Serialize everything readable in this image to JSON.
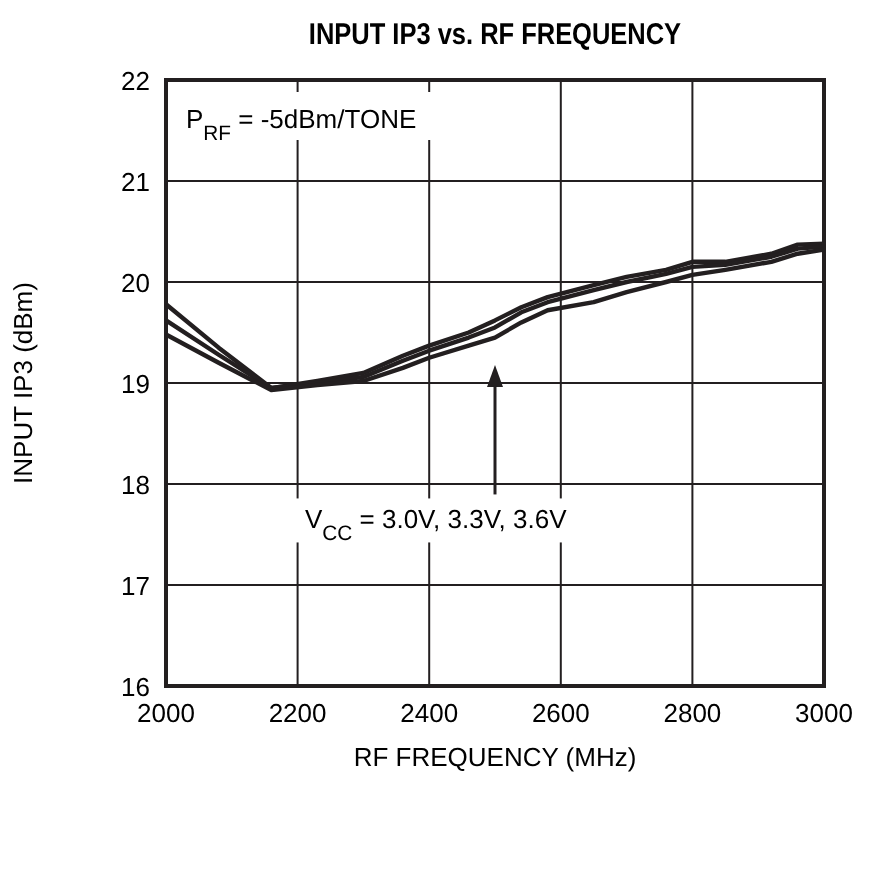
{
  "chart_data": {
    "type": "line",
    "title": "INPUT IP3 vs. RF FREQUENCY",
    "xlabel": "RF FREQUENCY (MHz)",
    "ylabel": "INPUT IP3 (dBm)",
    "xlim": [
      2000,
      3000
    ],
    "xticks": [
      2000,
      2200,
      2400,
      2600,
      2800,
      3000
    ],
    "ylim": [
      16,
      22
    ],
    "yticks": [
      16,
      17,
      18,
      19,
      20,
      21,
      22
    ],
    "grid": true,
    "marker": "none",
    "line_style": "solid",
    "annotations": [
      "P$_{RF}$ = -5dBm/TONE",
      "V$_{CC}$ = 3.0V, 3.3V, 3.6V"
    ],
    "series": [
      {
        "color": "#231f20",
        "x": [
          2000,
          2080,
          2160,
          2230,
          2300,
          2360,
          2400,
          2460,
          2500,
          2540,
          2580,
          2650,
          2700,
          2760,
          2800,
          2850,
          2920,
          2960,
          3000
        ],
        "values": [
          19.78,
          19.35,
          18.95,
          19.02,
          19.1,
          19.27,
          19.37,
          19.5,
          19.62,
          19.75,
          19.85,
          19.97,
          20.05,
          20.12,
          20.2,
          20.2,
          20.28,
          20.37,
          20.38
        ]
      },
      {
        "color": "#231f20",
        "x": [
          2000,
          2080,
          2160,
          2230,
          2300,
          2360,
          2400,
          2460,
          2500,
          2540,
          2580,
          2650,
          2700,
          2760,
          2800,
          2850,
          2920,
          2960,
          3000
        ],
        "values": [
          19.62,
          19.28,
          18.95,
          19.0,
          19.06,
          19.22,
          19.32,
          19.45,
          19.55,
          19.7,
          19.8,
          19.92,
          20.0,
          20.08,
          20.15,
          20.17,
          20.25,
          20.33,
          20.35
        ]
      },
      {
        "color": "#231f20",
        "x": [
          2000,
          2080,
          2160,
          2230,
          2300,
          2360,
          2400,
          2460,
          2500,
          2540,
          2580,
          2650,
          2700,
          2760,
          2800,
          2850,
          2920,
          2960,
          3000
        ],
        "values": [
          19.48,
          19.2,
          18.93,
          18.98,
          19.02,
          19.15,
          19.25,
          19.37,
          19.45,
          19.6,
          19.72,
          19.8,
          19.9,
          20.0,
          20.07,
          20.12,
          20.2,
          20.28,
          20.32
        ]
      }
    ]
  }
}
